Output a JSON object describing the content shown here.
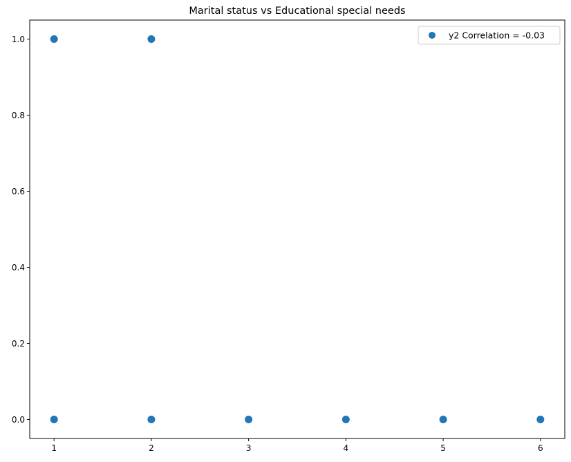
{
  "chart_data": {
    "type": "scatter",
    "title": "Marital status vs Educational special needs",
    "xlabel": "",
    "ylabel": "",
    "xlim": [
      0.75,
      6.25
    ],
    "ylim": [
      -0.05,
      1.05
    ],
    "xticks": [
      "1",
      "2",
      "3",
      "4",
      "5",
      "6"
    ],
    "yticks": [
      "0.0",
      "0.2",
      "0.4",
      "0.6",
      "0.8",
      "1.0"
    ],
    "grid": false,
    "legend_position": "top-right",
    "series": [
      {
        "name": "y2 Correlation = -0.03",
        "color": "#1f77b4",
        "points": [
          {
            "x": 1,
            "y": 1
          },
          {
            "x": 2,
            "y": 1
          },
          {
            "x": 1,
            "y": 0
          },
          {
            "x": 2,
            "y": 0
          },
          {
            "x": 3,
            "y": 0
          },
          {
            "x": 4,
            "y": 0
          },
          {
            "x": 5,
            "y": 0
          },
          {
            "x": 6,
            "y": 0
          }
        ]
      }
    ]
  }
}
